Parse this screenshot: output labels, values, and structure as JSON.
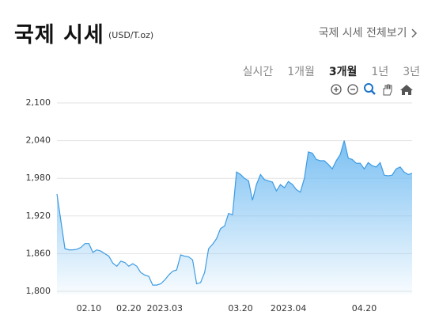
{
  "header": {
    "title": "국제 시세",
    "unit": "(USD/T.oz)",
    "link": "국제 시세 전체보기"
  },
  "tabs": [
    "실시간",
    "1개월",
    "3개월",
    "1년",
    "3년"
  ],
  "chart_data": {
    "type": "area",
    "color": "#3d9be3",
    "grid": true,
    "ylim": [
      1800,
      2100
    ],
    "yticks": [
      {
        "value": 1800,
        "label": "1,800"
      },
      {
        "value": 1860,
        "label": "1,860"
      },
      {
        "value": 1920,
        "label": "1,920"
      },
      {
        "value": 1980,
        "label": "1,980"
      },
      {
        "value": 2040,
        "label": "2,040"
      },
      {
        "value": 2100,
        "label": "2,100"
      }
    ],
    "categories": [
      null,
      null,
      null,
      null,
      null,
      null,
      null,
      null,
      "02.10",
      null,
      null,
      null,
      null,
      null,
      null,
      null,
      null,
      null,
      "02.20",
      null,
      null,
      null,
      null,
      null,
      null,
      null,
      null,
      "2023.03",
      null,
      null,
      null,
      null,
      null,
      null,
      null,
      null,
      null,
      null,
      null,
      null,
      null,
      null,
      null,
      null,
      null,
      null,
      "03.20",
      null,
      null,
      null,
      null,
      null,
      null,
      null,
      null,
      null,
      null,
      null,
      "2023.04",
      null,
      null,
      null,
      null,
      null,
      null,
      null,
      null,
      null,
      null,
      null,
      null,
      null,
      null,
      null,
      null,
      null,
      null,
      "04.20",
      null,
      null,
      null,
      null,
      null,
      null,
      null,
      null,
      null,
      null,
      null,
      null
    ],
    "values": [
      1955,
      1912,
      1868,
      1866,
      1866,
      1867,
      1870,
      1876,
      1876,
      1862,
      1866,
      1864,
      1860,
      1856,
      1845,
      1840,
      1848,
      1846,
      1840,
      1844,
      1840,
      1830,
      1826,
      1824,
      1810,
      1810,
      1812,
      1818,
      1826,
      1832,
      1834,
      1858,
      1856,
      1855,
      1850,
      1812,
      1814,
      1830,
      1868,
      1875,
      1884,
      1900,
      1904,
      1924,
      1922,
      1990,
      1986,
      1980,
      1976,
      1945,
      1970,
      1986,
      1978,
      1976,
      1974,
      1960,
      1970,
      1965,
      1975,
      1970,
      1962,
      1958,
      1980,
      2022,
      2020,
      2010,
      2008,
      2008,
      2002,
      1995,
      2008,
      2018,
      2040,
      2012,
      2010,
      2004,
      2004,
      1995,
      2005,
      2000,
      1998,
      2005,
      1985,
      1984,
      1985,
      1995,
      1998,
      1990,
      1986,
      1988
    ]
  }
}
